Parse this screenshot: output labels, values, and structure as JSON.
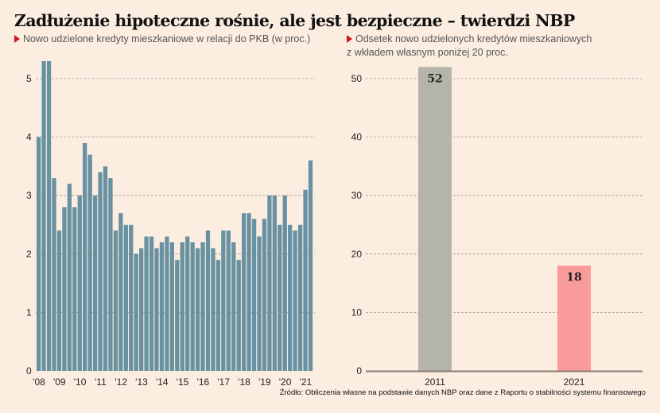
{
  "title": "Zadłużenie hipoteczne rośnie, ale jest bezpieczne – twierdzi NBP",
  "source": "Źródło: Obliczenia własne na podstawie danych NBP oraz dane z Raportu o stabilności systemu finansowego",
  "colors": {
    "left_bar": "#6891a2",
    "bar_2011": "#b5b4aa",
    "bar_2021": "#f99b9b",
    "accent_triangle": "#d0161b",
    "background": "#fbeee1"
  },
  "chart_data": [
    {
      "type": "bar",
      "title": "Nowo udzielone kredyty mieszkaniowe w relacji do PKB (w proc.)",
      "xlabel": "",
      "ylabel": "",
      "ylim": [
        0,
        5.5
      ],
      "yticks": [
        "0",
        "1",
        "2",
        "3",
        "4",
        "5"
      ],
      "xticks": [
        "'08",
        "'09",
        "'10",
        "'11",
        "'12",
        "'13",
        "'14",
        "'15",
        "'16",
        "'17",
        "'18",
        "'19",
        "'20",
        "'21"
      ],
      "grid": true,
      "values": [
        4.0,
        5.3,
        5.3,
        3.3,
        2.4,
        2.8,
        3.2,
        2.8,
        3.0,
        3.9,
        3.7,
        3.0,
        3.4,
        3.5,
        3.3,
        2.4,
        2.7,
        2.5,
        2.5,
        2.0,
        2.1,
        2.3,
        2.3,
        2.1,
        2.2,
        2.3,
        2.2,
        1.9,
        2.2,
        2.3,
        2.2,
        2.1,
        2.2,
        2.4,
        2.1,
        1.9,
        2.4,
        2.4,
        2.2,
        1.9,
        2.7,
        2.7,
        2.6,
        2.3,
        2.6,
        3.0,
        3.0,
        2.5,
        3.0,
        2.5,
        2.4,
        2.5,
        3.1,
        3.6
      ]
    },
    {
      "type": "bar",
      "title": "Odsetek nowo udzielonych kredytów mieszkaniowych z wkładem własnym poniżej 20 proc.",
      "title_line1": "Odsetek nowo udzielonych kredytów mieszkaniowych",
      "title_line2": "z wkładem własnym poniżej 20 proc.",
      "xlabel": "",
      "ylabel": "",
      "ylim": [
        0,
        55
      ],
      "yticks": [
        "0",
        "10",
        "20",
        "30",
        "40",
        "50"
      ],
      "grid": true,
      "categories": [
        "2011",
        "2021"
      ],
      "values": [
        52,
        18
      ],
      "data_labels": [
        "52",
        "18"
      ]
    }
  ]
}
